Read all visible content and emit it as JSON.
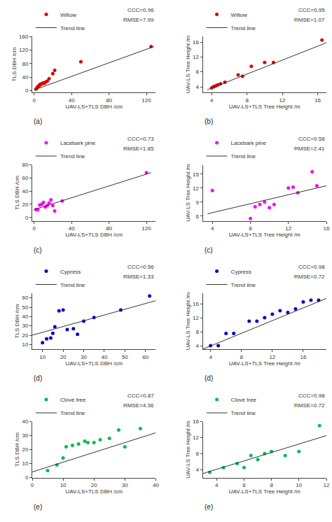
{
  "chart_data": [
    {
      "type": "scatter",
      "title": "(a)",
      "xlabel": "UAV-LS+TLS DBH /cm",
      "ylabel": "TLS DBH /cm",
      "xlim": [
        -2,
        130
      ],
      "ylim": [
        -5,
        160
      ],
      "xticks": [
        0,
        40,
        80,
        120
      ],
      "yticks": [
        0,
        40,
        80,
        120,
        160
      ],
      "grid": false,
      "legend": "upper left",
      "annotations": [
        "CCC=0.96",
        "RMSE=7.99"
      ],
      "series": [
        {
          "name": "Willow",
          "type": "scatter",
          "color": "#dd0000",
          "marker": "circle",
          "x": [
            2,
            3,
            4,
            4.5,
            5,
            5.5,
            6,
            6.5,
            7,
            8,
            9,
            10,
            11,
            12,
            14,
            16,
            20,
            22,
            50,
            125
          ],
          "values": [
            5,
            8,
            12,
            13,
            14,
            15,
            17,
            18,
            19,
            20,
            22,
            23,
            22,
            25,
            28,
            35,
            50,
            60,
            85,
            130
          ]
        },
        {
          "name": "Trend line",
          "type": "line",
          "color": "#333333",
          "line_style": "solid",
          "x": [
            0,
            128
          ],
          "values": [
            2,
            130
          ]
        }
      ]
    },
    {
      "type": "scatter",
      "title": "(b)",
      "xlabel": "UAV-LS+TLS Tree Height /m",
      "ylabel": "UAV-LS Tree Height /m",
      "xlim": [
        3,
        17
      ],
      "ylim": [
        2.5,
        17.5
      ],
      "xticks": [
        4,
        8,
        12,
        16
      ],
      "yticks": [
        4,
        8,
        12,
        16
      ],
      "grid": false,
      "legend": "upper left",
      "annotations": [
        "CCC=0.95",
        "RMSE=1.07"
      ],
      "series": [
        {
          "name": "Willow",
          "type": "scatter",
          "color": "#dd0000",
          "marker": "circle",
          "x": [
            4.0,
            4.2,
            4.3,
            4.5,
            4.7,
            5.0,
            5.5,
            7.0,
            7.5,
            8.5,
            10.0,
            11.0,
            16.5
          ],
          "values": [
            3.7,
            4.0,
            4.1,
            4.3,
            4.5,
            4.8,
            5.2,
            7.2,
            6.8,
            9.5,
            10.5,
            10.5,
            16.5
          ]
        },
        {
          "name": "Trend line",
          "type": "line",
          "color": "#333333",
          "line_style": "solid",
          "x": [
            3.5,
            17
          ],
          "values": [
            3.2,
            15.8
          ]
        }
      ]
    },
    {
      "type": "scatter",
      "title": "(c)",
      "xlabel": "UAV-LS+TLS DBH /cm",
      "ylabel": "TLS DBH /cm",
      "xlim": [
        -2,
        130
      ],
      "ylim": [
        -5,
        80
      ],
      "xticks": [
        0,
        40,
        80,
        120
      ],
      "yticks": [
        0,
        20,
        40,
        60,
        80
      ],
      "grid": false,
      "legend": "upper left",
      "annotations": [
        "CCC=0.73",
        "RMSE=1.85"
      ],
      "series": [
        {
          "name": "Lacebark pine",
          "type": "scatter",
          "color": "#ff00ff",
          "marker": "circle",
          "x": [
            2,
            4,
            6,
            8,
            10,
            12,
            14,
            16,
            18,
            20,
            22,
            30,
            120
          ],
          "values": [
            12,
            12,
            19,
            20,
            23,
            16,
            18,
            22,
            27,
            18,
            10,
            25,
            68
          ]
        },
        {
          "name": "Trend line",
          "type": "line",
          "color": "#333333",
          "line_style": "solid",
          "x": [
            0,
            125
          ],
          "values": [
            12,
            68
          ]
        }
      ]
    },
    {
      "type": "scatter",
      "title": "(c)",
      "xlabel": "UAV-LS+TLS Tree Height /m",
      "ylabel": "UAV-LS Tree Height /m",
      "xlim": [
        3,
        16
      ],
      "ylim": [
        5,
        17
      ],
      "xticks": [
        4,
        8,
        12,
        16
      ],
      "yticks": [
        6,
        9,
        12,
        15
      ],
      "grid": false,
      "legend": "upper left",
      "annotations": [
        "CCC=0.58",
        "RMSE=2.41"
      ],
      "series": [
        {
          "name": "Lacebark pine",
          "type": "scatter",
          "color": "#ff00ff",
          "marker": "circle",
          "x": [
            4,
            8.0,
            8.5,
            9.0,
            9.5,
            10.0,
            10.5,
            12.0,
            12.5,
            13.0,
            14.5,
            15.0
          ],
          "values": [
            11.5,
            5.5,
            8.0,
            8.5,
            9.0,
            7.8,
            8.5,
            12.0,
            12.2,
            11.0,
            15.5,
            12.5
          ]
        },
        {
          "name": "Trend line",
          "type": "line",
          "color": "#333333",
          "line_style": "solid",
          "x": [
            3.5,
            16
          ],
          "values": [
            6.5,
            12.5
          ]
        }
      ]
    },
    {
      "type": "scatter",
      "title": "(d)",
      "xlabel": "UAV-LS+TLS DBH /cm",
      "ylabel": "TLS DBH /cm",
      "xlim": [
        5,
        65
      ],
      "ylim": [
        5,
        65
      ],
      "xticks": [
        10,
        20,
        30,
        40,
        50,
        60
      ],
      "yticks": [
        10,
        20,
        30,
        40,
        50,
        60
      ],
      "grid": false,
      "legend": "upper left",
      "annotations": [
        "CCC=0.56",
        "RMSE=1.33"
      ],
      "series": [
        {
          "name": "Cypress",
          "type": "scatter",
          "color": "#0000cc",
          "marker": "circle",
          "x": [
            10,
            12,
            14,
            15,
            16,
            18,
            20,
            22,
            25,
            27,
            30,
            35,
            48,
            62
          ],
          "values": [
            12,
            16,
            17,
            22,
            29,
            46,
            47,
            26,
            27,
            21,
            35,
            39,
            47,
            62
          ]
        },
        {
          "name": "Trend line",
          "type": "line",
          "color": "#333333",
          "line_style": "solid",
          "x": [
            5,
            65
          ],
          "values": [
            20,
            57
          ]
        }
      ]
    },
    {
      "type": "scatter",
      "title": "(d)",
      "xlabel": "UAV-LS+TLS Tree Height /m",
      "ylabel": "UAV-LS Tree Height /m",
      "xlim": [
        3,
        19
      ],
      "ylim": [
        3,
        19
      ],
      "xticks": [
        4,
        8,
        12,
        16
      ],
      "yticks": [
        4,
        8,
        12,
        16
      ],
      "grid": false,
      "legend": "upper left",
      "annotations": [
        "CCC=0.98",
        "RMSE=0.72"
      ],
      "series": [
        {
          "name": "Cypress",
          "type": "scatter",
          "color": "#0000cc",
          "marker": "circle",
          "x": [
            4.0,
            5.0,
            6.0,
            7.0,
            9.0,
            10.0,
            11.0,
            12.0,
            13.0,
            14.0,
            15.0,
            16.0,
            17.0,
            18.0
          ],
          "values": [
            4.0,
            4.0,
            7.5,
            7.5,
            11.0,
            11.0,
            12.0,
            13.0,
            14.0,
            13.5,
            14.5,
            16.5,
            17.0,
            17.0
          ]
        },
        {
          "name": "Trend line",
          "type": "line",
          "color": "#333333",
          "line_style": "solid",
          "x": [
            3,
            19
          ],
          "values": [
            3,
            17.5
          ]
        }
      ]
    },
    {
      "type": "scatter",
      "title": "(e)",
      "xlabel": "UAV-LS+TLS DBH /cm",
      "ylabel": "TLS DBH /cm",
      "xlim": [
        0,
        40
      ],
      "ylim": [
        0,
        40
      ],
      "xticks": [
        0,
        10,
        20,
        30,
        40
      ],
      "yticks": [
        0,
        10,
        20,
        30,
        40
      ],
      "grid": false,
      "legend": "upper left",
      "annotations": [
        "CCC=0.87",
        "RMSE=4.36"
      ],
      "series": [
        {
          "name": "Clove tree",
          "type": "scatter",
          "color": "#00bb55",
          "marker": "circle",
          "x": [
            5,
            8,
            10,
            11,
            13,
            15,
            17,
            18,
            20,
            22,
            25,
            28,
            30,
            35
          ],
          "values": [
            5,
            9,
            14,
            22,
            23,
            24,
            26,
            25,
            25,
            27,
            28,
            34,
            22,
            35
          ]
        },
        {
          "name": "Trend line",
          "type": "line",
          "color": "#333333",
          "line_style": "solid",
          "x": [
            0,
            40
          ],
          "values": [
            4,
            32
          ]
        }
      ]
    },
    {
      "type": "scatter",
      "title": "(e)",
      "xlabel": "UAV-LS+TLS Tree Height /m",
      "ylabel": "UAV-LS Tree Height /m",
      "xlim": [
        3,
        12
      ],
      "ylim": [
        2,
        16
      ],
      "xticks": [
        4,
        6,
        8,
        10,
        12
      ],
      "yticks": [
        4,
        8,
        12,
        16
      ],
      "grid": false,
      "legend": "upper left",
      "annotations": [
        "CCC=0.98",
        "RMSE=0.72"
      ],
      "series": [
        {
          "name": "Clove tree",
          "type": "scatter",
          "color": "#00bb55",
          "marker": "circle",
          "x": [
            3.5,
            4.5,
            5.5,
            6.0,
            6.5,
            7.0,
            7.5,
            8.0,
            9.0,
            10.0,
            11.5
          ],
          "values": [
            3.3,
            4.5,
            5.5,
            4.5,
            7.5,
            6.5,
            8.0,
            8.5,
            7.5,
            8.5,
            15.0
          ]
        },
        {
          "name": "Trend line",
          "type": "line",
          "color": "#333333",
          "line_style": "solid",
          "x": [
            3,
            12
          ],
          "values": [
            3,
            12.5
          ]
        }
      ]
    }
  ]
}
